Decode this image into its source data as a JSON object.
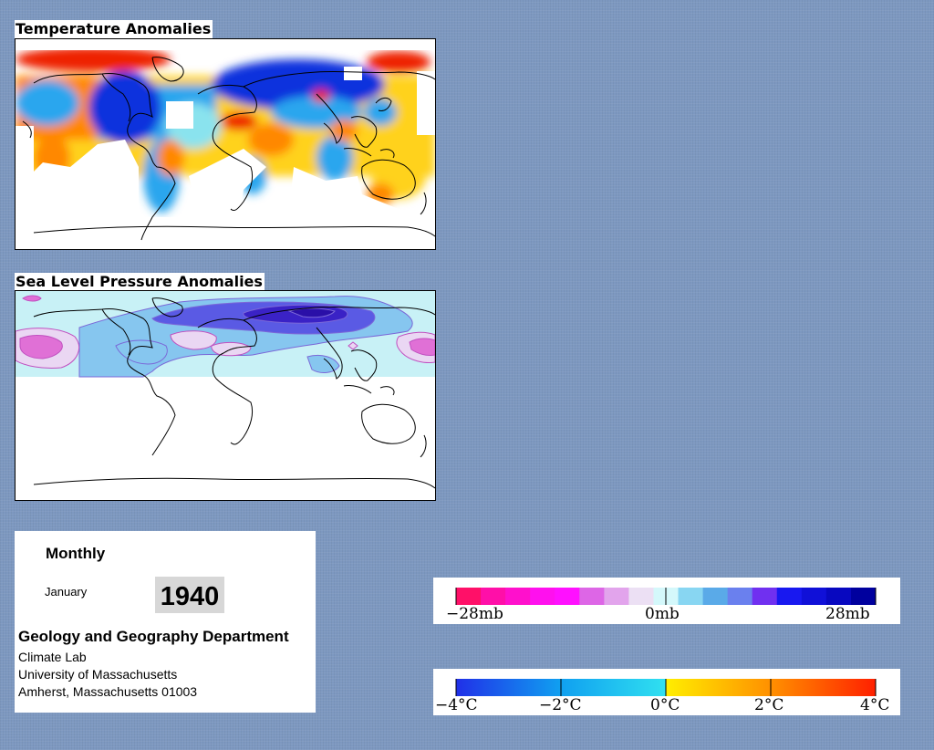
{
  "temperature_map": {
    "title": "Temperature Anomalies",
    "colors": {
      "strong_warm": "#ee2200",
      "warm": "#ff8800",
      "mild_warm": "#ffd21a",
      "neutral": "#8ae3ee",
      "cool": "#2aa6ee",
      "strong_cool": "#1030dd"
    }
  },
  "pressure_map": {
    "title": "Sea Level Pressure Anomalies",
    "colors": {
      "strong_high": "#e070d6",
      "high": "#ead7f3",
      "neutral": "#c8f1f6",
      "low": "#86c6ef",
      "strong_low": "#5a5ae4",
      "very_strong_low": "#3a22c6"
    }
  },
  "info": {
    "frequency": "Monthly",
    "month": "January",
    "year": "1940",
    "department": "Geology and Geography Department",
    "lab": "Climate Lab",
    "university": "University of Massachusetts",
    "address": "Amherst, Massachusetts 01003"
  },
  "pressure_legend": {
    "labels": [
      "−28mb",
      "0mb",
      "28mb"
    ],
    "colors": [
      "#ff1068",
      "#ff0fa8",
      "#ff10cc",
      "#ff10ee",
      "#ff10ff",
      "#dd66e6",
      "#e2a4ec",
      "#ece0f4",
      "#d4f8fb",
      "#88d6f2",
      "#5aaae8",
      "#6a80ee",
      "#7030f0",
      "#1818f0",
      "#1010d8",
      "#0808c0",
      "#00009e"
    ]
  },
  "temperature_legend": {
    "labels": [
      "−4°C",
      "−2°C",
      "0°C",
      "2°C",
      "4°C"
    ],
    "colors": [
      "#2030e8",
      "#1070f0",
      "#10a0f0",
      "#20c8f0",
      "#30e0f0",
      "#ffee00",
      "#ffc000",
      "#ff9000",
      "#ff6000",
      "#ff2000"
    ]
  }
}
